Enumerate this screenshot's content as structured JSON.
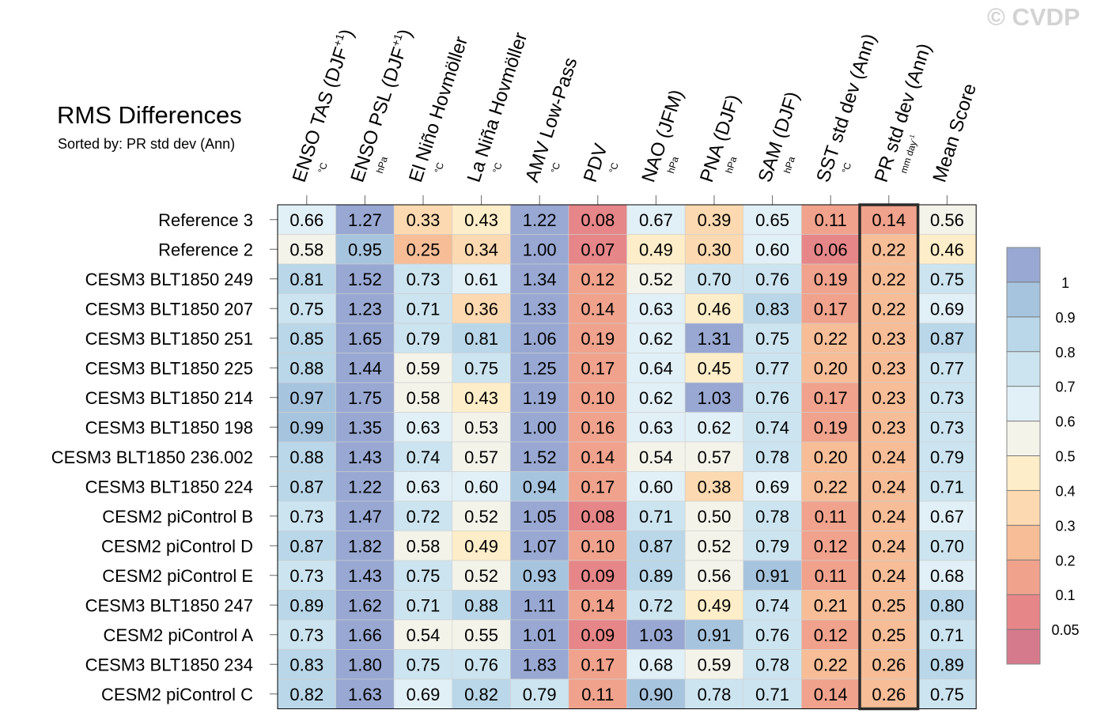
{
  "title": "RMS Differences",
  "subtitle": "Sorted by: PR std dev (Ann)",
  "watermark": "© CVDP",
  "chart_data": {
    "type": "heatmap",
    "title": "RMS Differences",
    "subtitle": "Sorted by: PR std dev (Ann)",
    "columns": [
      {
        "label": "ENSO TAS (DJF",
        "sup": "+1",
        "close": ")",
        "unit": "°C"
      },
      {
        "label": "ENSO PSL (DJF",
        "sup": "+1",
        "close": ")",
        "unit": "hPa"
      },
      {
        "label": "El Niño Hovmöller",
        "unit": "°C"
      },
      {
        "label": "La Niña Hovmöller",
        "unit": "°C"
      },
      {
        "label": "AMV Low-Pass",
        "unit": "°C"
      },
      {
        "label": "PDV",
        "unit": "°C"
      },
      {
        "label": "NAO (JFM)",
        "unit": "hPa"
      },
      {
        "label": "PNA (DJF)",
        "unit": "hPa"
      },
      {
        "label": "SAM (DJF)",
        "unit": "hPa"
      },
      {
        "label": "SST std dev (Ann)",
        "unit": "°C"
      },
      {
        "label": "PR std dev (Ann)",
        "unit": "mm day",
        "unit_sup": "-1"
      },
      {
        "label": "Mean Score",
        "unit": ""
      }
    ],
    "highlighted_column": "PR std dev (Ann)",
    "rows": [
      {
        "name": "Reference 3",
        "values": [
          0.66,
          1.27,
          0.33,
          0.43,
          1.22,
          0.08,
          0.67,
          0.39,
          0.65,
          0.11,
          0.14,
          0.56
        ]
      },
      {
        "name": "Reference 2",
        "values": [
          0.58,
          0.95,
          0.25,
          0.34,
          1.0,
          0.07,
          0.49,
          0.3,
          0.6,
          0.06,
          0.22,
          0.46
        ]
      },
      {
        "name": "CESM3 BLT1850 249",
        "values": [
          0.81,
          1.52,
          0.73,
          0.61,
          1.34,
          0.12,
          0.52,
          0.7,
          0.76,
          0.19,
          0.22,
          0.75
        ]
      },
      {
        "name": "CESM3 BLT1850 207",
        "values": [
          0.75,
          1.23,
          0.71,
          0.36,
          1.33,
          0.14,
          0.63,
          0.46,
          0.83,
          0.17,
          0.22,
          0.69
        ]
      },
      {
        "name": "CESM3 BLT1850 251",
        "values": [
          0.85,
          1.65,
          0.79,
          0.81,
          1.06,
          0.19,
          0.62,
          1.31,
          0.75,
          0.22,
          0.23,
          0.87
        ]
      },
      {
        "name": "CESM3 BLT1850 225",
        "values": [
          0.88,
          1.44,
          0.59,
          0.75,
          1.25,
          0.17,
          0.64,
          0.45,
          0.77,
          0.2,
          0.23,
          0.77
        ]
      },
      {
        "name": "CESM3 BLT1850 214",
        "values": [
          0.97,
          1.75,
          0.58,
          0.43,
          1.19,
          0.1,
          0.62,
          1.03,
          0.76,
          0.17,
          0.23,
          0.73
        ]
      },
      {
        "name": "CESM3 BLT1850 198",
        "values": [
          0.99,
          1.35,
          0.63,
          0.53,
          1.0,
          0.16,
          0.63,
          0.62,
          0.74,
          0.19,
          0.23,
          0.73
        ]
      },
      {
        "name": "CESM3 BLT1850 236.002",
        "values": [
          0.88,
          1.43,
          0.74,
          0.57,
          1.52,
          0.14,
          0.54,
          0.57,
          0.78,
          0.2,
          0.24,
          0.79
        ]
      },
      {
        "name": "CESM3 BLT1850 224",
        "values": [
          0.87,
          1.22,
          0.63,
          0.6,
          0.94,
          0.17,
          0.6,
          0.38,
          0.69,
          0.22,
          0.24,
          0.71
        ]
      },
      {
        "name": "CESM2 piControl B",
        "values": [
          0.73,
          1.47,
          0.72,
          0.52,
          1.05,
          0.08,
          0.71,
          0.5,
          0.78,
          0.11,
          0.24,
          0.67
        ]
      },
      {
        "name": "CESM2 piControl D",
        "values": [
          0.87,
          1.82,
          0.58,
          0.49,
          1.07,
          0.1,
          0.87,
          0.52,
          0.79,
          0.12,
          0.24,
          0.7
        ]
      },
      {
        "name": "CESM2 piControl E",
        "values": [
          0.73,
          1.43,
          0.75,
          0.52,
          0.93,
          0.09,
          0.89,
          0.56,
          0.91,
          0.11,
          0.24,
          0.68
        ]
      },
      {
        "name": "CESM3 BLT1850 247",
        "values": [
          0.89,
          1.62,
          0.71,
          0.88,
          1.11,
          0.14,
          0.72,
          0.49,
          0.74,
          0.21,
          0.25,
          0.8
        ]
      },
      {
        "name": "CESM2 piControl A",
        "values": [
          0.73,
          1.66,
          0.54,
          0.55,
          1.01,
          0.09,
          1.03,
          0.91,
          0.76,
          0.12,
          0.25,
          0.71
        ]
      },
      {
        "name": "CESM3 BLT1850 234",
        "values": [
          0.83,
          1.8,
          0.75,
          0.76,
          1.83,
          0.17,
          0.68,
          0.59,
          0.78,
          0.22,
          0.26,
          0.89
        ]
      },
      {
        "name": "CESM2 piControl C",
        "values": [
          0.82,
          1.63,
          0.69,
          0.82,
          0.79,
          0.11,
          0.9,
          0.78,
          0.71,
          0.14,
          0.26,
          0.75
        ]
      }
    ],
    "colorbar": {
      "labels": [
        "1",
        "0.9",
        "0.8",
        "0.7",
        "0.6",
        "0.5",
        "0.4",
        "0.3",
        "0.2",
        "0.1",
        "0.05"
      ],
      "colors": [
        "#98a8d2",
        "#a7c4de",
        "#b9d7e8",
        "#cce4ef",
        "#e1eff6",
        "#f3f3ea",
        "#fdedc8",
        "#fcd9b0",
        "#f6bd97",
        "#f0a28c",
        "#e68688",
        "#d57a8d"
      ]
    }
  }
}
